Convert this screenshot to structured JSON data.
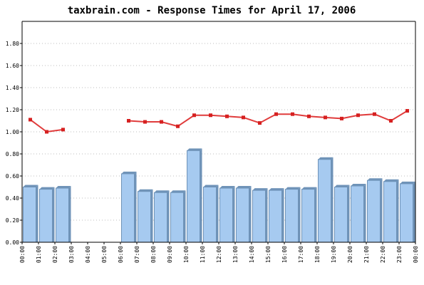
{
  "chart_data": {
    "type": "bar+line",
    "title": "taxbrain.com - Response Times for April 17, 2006",
    "xlabel": "",
    "ylabel": "",
    "ylim": [
      0,
      2.0
    ],
    "y_ticks": [
      "0.00",
      "0.20",
      "0.40",
      "0.60",
      "0.80",
      "1.00",
      "1.20",
      "1.40",
      "1.60",
      "1.80"
    ],
    "y_tick_values": [
      0,
      0.2,
      0.4,
      0.6,
      0.8,
      1.0,
      1.2,
      1.4,
      1.6,
      1.8
    ],
    "grid": true,
    "legend": "none",
    "categories": [
      "00:00",
      "01:00",
      "02:00",
      "03:00",
      "04:00",
      "05:00",
      "06:00",
      "07:00",
      "08:00",
      "09:00",
      "10:00",
      "11:00",
      "12:00",
      "13:00",
      "14:00",
      "15:00",
      "16:00",
      "17:00",
      "18:00",
      "19:00",
      "20:00",
      "21:00",
      "22:00",
      "23:00"
    ],
    "x_tick_labels": [
      "00:00",
      "01:00",
      "02:00",
      "03:00",
      "04:00",
      "05:00",
      "06:00",
      "07:00",
      "08:00",
      "09:00",
      "10:00",
      "11:00",
      "12:00",
      "13:00",
      "14:00",
      "15:00",
      "16:00",
      "17:00",
      "18:00",
      "19:00",
      "20:00",
      "21:00",
      "22:00",
      "23:00",
      "00:00"
    ],
    "series": [
      {
        "type": "bar",
        "color": "#a6caf0",
        "values": [
          0.5,
          0.48,
          0.49,
          null,
          null,
          null,
          0.62,
          0.46,
          0.45,
          0.45,
          0.83,
          0.5,
          0.49,
          0.49,
          0.47,
          0.47,
          0.48,
          0.48,
          0.75,
          0.5,
          0.51,
          0.56,
          0.55,
          0.53
        ]
      },
      {
        "type": "line",
        "color": "#e03c3c",
        "values": [
          1.11,
          1.0,
          1.02,
          null,
          null,
          null,
          1.1,
          1.09,
          1.09,
          1.05,
          1.15,
          1.15,
          1.14,
          1.13,
          1.08,
          1.16,
          1.16,
          1.14,
          1.13,
          1.12,
          1.15,
          1.16,
          1.1,
          1.19
        ]
      }
    ]
  }
}
